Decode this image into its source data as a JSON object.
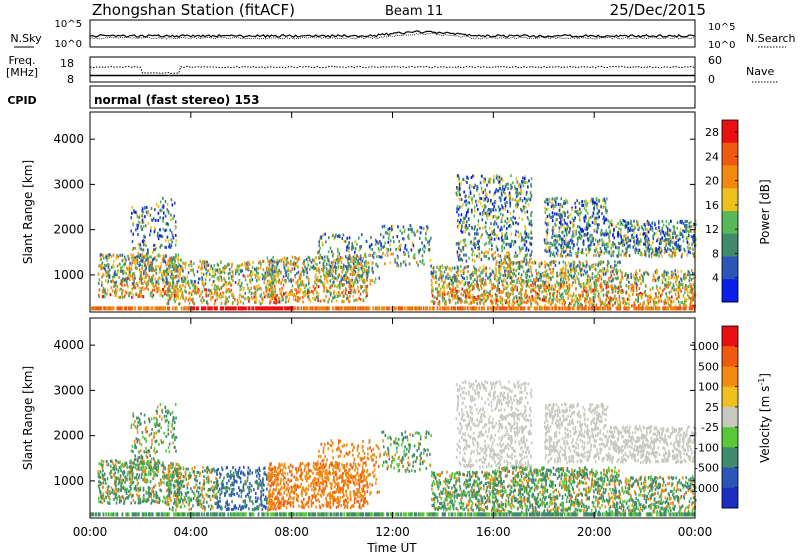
{
  "header": {
    "station": "Zhongshan Station (fitACF)",
    "beam": "Beam 11",
    "date": "25/Dec/2015"
  },
  "noise_panel": {
    "left_label": "N.Sky",
    "left_ticks": [
      "10^5",
      "10^0"
    ],
    "right_label": "N.Search",
    "right_ticks": [
      "10^5",
      "10^0"
    ]
  },
  "freq_panel": {
    "left_label_1": "Freq.",
    "left_label_2": "[MHz]",
    "left_ticks": [
      "18",
      "8"
    ],
    "right_label": "Nave",
    "right_ticks": [
      "60",
      "0"
    ]
  },
  "cpid": {
    "label": "CPID",
    "mode": "normal (fast stereo) 153"
  },
  "x_axis": {
    "label": "Time UT",
    "ticks": [
      "00:00",
      "04:00",
      "08:00",
      "12:00",
      "16:00",
      "20:00",
      "00:00"
    ]
  },
  "colors": {
    "power": [
      "#0a1fe6",
      "#2a56b8",
      "#3f8a6a",
      "#58b85a",
      "#f0c020",
      "#f08a10",
      "#f05a10",
      "#e81010"
    ],
    "velocity": [
      "#e81010",
      "#f05a10",
      "#f08a10",
      "#f0c020",
      "#c8c8c0",
      "#58c83a",
      "#3f8a6a",
      "#2a56b8",
      "#1a2fc0"
    ]
  },
  "chart_data": [
    {
      "type": "heatmap",
      "title": "",
      "xlabel": "Time UT",
      "ylabel": "Slant Range [km]",
      "xlim_hours": [
        0,
        24
      ],
      "ylim": [
        180,
        4600
      ],
      "yticks": [
        "1000",
        "2000",
        "3000",
        "4000"
      ],
      "colorbar_label": "Power [dB]",
      "colorbar_ticks": [
        "4",
        "8",
        "12",
        "16",
        "20",
        "24",
        "28"
      ],
      "colorbar_range": [
        0,
        30
      ]
    },
    {
      "type": "heatmap",
      "title": "",
      "xlabel": "Time UT",
      "ylabel": "Slant Range [km]",
      "xlim_hours": [
        0,
        24
      ],
      "ylim": [
        180,
        4600
      ],
      "yticks": [
        "1000",
        "2000",
        "3000",
        "4000"
      ],
      "colorbar_label": "Velocity [m s",
      "colorbar_label_sup": "-1",
      "colorbar_label_end": "]",
      "colorbar_ticks": [
        "1000",
        "500",
        "100",
        "25",
        "-25",
        "-100",
        "-500",
        "-1000"
      ],
      "colorbar_range": [
        -1000,
        1000
      ]
    }
  ]
}
